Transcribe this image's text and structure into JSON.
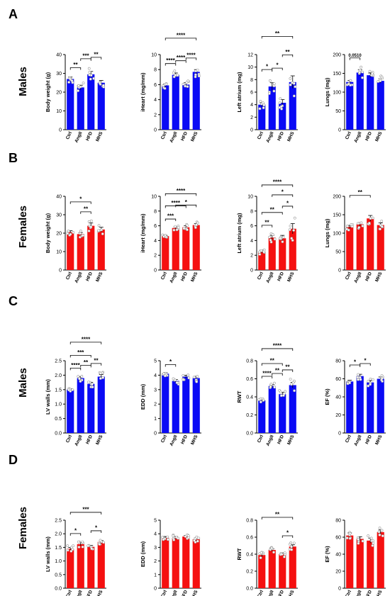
{
  "panels": [
    {
      "letter": "A",
      "row_label": "Males"
    },
    {
      "letter": "B",
      "row_label": "Females"
    },
    {
      "letter": "C",
      "row_label": "Males"
    },
    {
      "letter": "D",
      "row_label": "Females"
    }
  ],
  "colors": {
    "male": "#0a0af5",
    "female": "#f51010",
    "text": "#000000",
    "point_edge": "#9a9a9a"
  },
  "chart_data": [
    {
      "type": "bar",
      "panel": "A",
      "ylabel": "Body weight (g)",
      "categories": [
        "Ctrl",
        "AngII",
        "HFD",
        "MHS"
      ],
      "values": [
        27,
        22.5,
        29.5,
        25
      ],
      "errors": [
        1,
        1.2,
        1.5,
        1.2
      ],
      "ylim": [
        0,
        40
      ],
      "ticks": [
        0,
        10,
        20,
        30,
        40
      ],
      "tick_labels": [
        "0",
        "10",
        "20",
        "30",
        "40"
      ],
      "color": "male",
      "brackets": [
        {
          "from": 0,
          "to": 1,
          "label": "**"
        },
        {
          "from": 1,
          "to": 2,
          "label": "***"
        },
        {
          "from": 2,
          "to": 3,
          "label": "**"
        }
      ]
    },
    {
      "type": "bar",
      "panel": "A",
      "ylabel": "iHeart (mg/mm)",
      "categories": [
        "Ctrl",
        "AngII",
        "HFD",
        "MHS"
      ],
      "values": [
        5.9,
        7.3,
        6.0,
        7.7
      ],
      "errors": [
        0.2,
        0.25,
        0.25,
        0.3
      ],
      "ylim": [
        0,
        10
      ],
      "ticks": [
        0,
        2,
        4,
        6,
        8,
        10
      ],
      "tick_labels": [
        "0",
        "2",
        "4",
        "6",
        "8",
        "10"
      ],
      "color": "male",
      "brackets": [
        {
          "from": 0,
          "to": 1,
          "label": "****"
        },
        {
          "from": 2,
          "to": 3,
          "label": "****"
        },
        {
          "from": 1,
          "to": 2,
          "label": "****"
        },
        {
          "from": 0,
          "to": 3,
          "label": "****"
        }
      ]
    },
    {
      "type": "bar",
      "panel": "A",
      "ylabel": "Left atrium (mg)",
      "categories": [
        "Ctrl",
        "AngII",
        "HFD",
        "MHS"
      ],
      "values": [
        4.0,
        6.9,
        4.3,
        7.6
      ],
      "errors": [
        0.3,
        0.6,
        0.5,
        1.0
      ],
      "ylim": [
        0,
        12
      ],
      "ticks": [
        0,
        2,
        4,
        6,
        8,
        10,
        12
      ],
      "tick_labels": [
        "0",
        "2",
        "4",
        "6",
        "8",
        "10",
        "12"
      ],
      "color": "male",
      "brackets": [
        {
          "from": 0,
          "to": 1,
          "label": "*"
        },
        {
          "from": 1,
          "to": 2,
          "label": "*"
        },
        {
          "from": 2,
          "to": 3,
          "label": "**"
        },
        {
          "from": 0,
          "to": 3,
          "label": "**"
        }
      ]
    },
    {
      "type": "bar",
      "panel": "A",
      "ylabel": "Lungs (mg)",
      "categories": [
        "Ctrl",
        "AngII",
        "HFD",
        "MHS"
      ],
      "values": [
        127,
        152,
        145,
        130
      ],
      "errors": [
        4,
        8,
        6,
        6
      ],
      "ylim": [
        0,
        200
      ],
      "ticks": [
        0,
        50,
        100,
        150,
        200
      ],
      "tick_labels": [
        "0",
        "50",
        "100",
        "150",
        "200"
      ],
      "color": "male",
      "brackets": [
        {
          "from": 0,
          "to": 1,
          "label": "0.0510"
        }
      ]
    },
    {
      "type": "bar",
      "panel": "B",
      "ylabel": "Body weight (g)",
      "categories": [
        "Ctrl",
        "AngII",
        "HFD",
        "MHS"
      ],
      "values": [
        20.5,
        19.5,
        24,
        22
      ],
      "errors": [
        0.8,
        0.8,
        1.5,
        1.2
      ],
      "ylim": [
        0,
        40
      ],
      "ticks": [
        0,
        10,
        20,
        30,
        40
      ],
      "tick_labels": [
        "0",
        "10",
        "20",
        "30",
        "40"
      ],
      "color": "female",
      "brackets": [
        {
          "from": 1,
          "to": 2,
          "label": "**"
        },
        {
          "from": 0,
          "to": 2,
          "label": "*"
        }
      ]
    },
    {
      "type": "bar",
      "panel": "B",
      "ylabel": "iHeart (mg/mm)",
      "categories": [
        "Ctrl",
        "AngII",
        "HFD",
        "MHS"
      ],
      "values": [
        4.6,
        5.7,
        5.8,
        6.1
      ],
      "errors": [
        0.1,
        0.15,
        0.2,
        0.2
      ],
      "ylim": [
        0,
        10
      ],
      "ticks": [
        0,
        2,
        4,
        6,
        8,
        10
      ],
      "tick_labels": [
        "0",
        "2",
        "4",
        "6",
        "8",
        "10"
      ],
      "color": "female",
      "brackets": [
        {
          "from": 0,
          "to": 1,
          "label": "***"
        },
        {
          "from": 1,
          "to": 3,
          "label": "*"
        },
        {
          "from": 0,
          "to": 2,
          "label": "****"
        },
        {
          "from": 0,
          "to": 3,
          "label": "****"
        }
      ]
    },
    {
      "type": "bar",
      "panel": "B",
      "ylabel": "Left atrium (mg)",
      "categories": [
        "Ctrl",
        "AngII",
        "HFD",
        "MHS"
      ],
      "values": [
        2.5,
        4.4,
        4.3,
        5.6
      ],
      "errors": [
        0.2,
        0.3,
        0.4,
        0.7
      ],
      "ylim": [
        0,
        10
      ],
      "ticks": [
        0,
        2,
        4,
        6,
        8,
        10
      ],
      "tick_labels": [
        "0",
        "2",
        "4",
        "6",
        "8",
        "10"
      ],
      "color": "female",
      "brackets": [
        {
          "from": 0,
          "to": 1,
          "label": "**"
        },
        {
          "from": 2,
          "to": 3,
          "label": "*"
        },
        {
          "from": 0,
          "to": 2,
          "label": "**"
        },
        {
          "from": 1,
          "to": 3,
          "label": "*"
        },
        {
          "from": 0,
          "to": 3,
          "label": "****"
        }
      ]
    },
    {
      "type": "bar",
      "panel": "B",
      "ylabel": "Lungs (mg)",
      "categories": [
        "Ctrl",
        "AngII",
        "HFD",
        "MHS"
      ],
      "values": [
        117,
        124,
        140,
        122
      ],
      "errors": [
        4,
        5,
        8,
        6
      ],
      "ylim": [
        0,
        200
      ],
      "ticks": [
        0,
        50,
        100,
        150,
        200
      ],
      "tick_labels": [
        "0",
        "50",
        "100",
        "150",
        "200"
      ],
      "color": "female",
      "brackets": [
        {
          "from": 0,
          "to": 2,
          "label": "**"
        }
      ]
    },
    {
      "type": "bar",
      "panel": "C",
      "ylabel": "LV walls (mm)",
      "categories": [
        "Ctrl",
        "AngII",
        "HFD",
        "MHS"
      ],
      "values": [
        1.5,
        1.9,
        1.7,
        1.95
      ],
      "errors": [
        0.03,
        0.05,
        0.05,
        0.07
      ],
      "ylim": [
        0,
        2.5
      ],
      "ticks": [
        0,
        0.5,
        1,
        1.5,
        2,
        2.5
      ],
      "tick_labels": [
        "0.0",
        "0.5",
        "1.0",
        "1.5",
        "2.0",
        "2.5"
      ],
      "color": "male",
      "brackets": [
        {
          "from": 0,
          "to": 1,
          "label": "****"
        },
        {
          "from": 2,
          "to": 3,
          "label": "**"
        },
        {
          "from": 1,
          "to": 2,
          "label": "**"
        },
        {
          "from": 0,
          "to": 2,
          "label": "***"
        },
        {
          "from": 0,
          "to": 3,
          "label": "****"
        }
      ]
    },
    {
      "type": "bar",
      "panel": "C",
      "ylabel": "EDD (mm)",
      "categories": [
        "Ctrl",
        "AngII",
        "HFD",
        "MHS"
      ],
      "values": [
        4.1,
        3.6,
        3.9,
        3.8
      ],
      "errors": [
        0.08,
        0.1,
        0.1,
        0.12
      ],
      "ylim": [
        0,
        5
      ],
      "ticks": [
        0,
        1,
        2,
        3,
        4,
        5
      ],
      "tick_labels": [
        "0",
        "1",
        "2",
        "3",
        "4",
        "5"
      ],
      "color": "male",
      "brackets": [
        {
          "from": 0,
          "to": 1,
          "label": "*"
        }
      ]
    },
    {
      "type": "bar",
      "panel": "C",
      "ylabel": "RWT",
      "categories": [
        "Ctrl",
        "AngII",
        "HFD",
        "MHS"
      ],
      "values": [
        0.36,
        0.52,
        0.43,
        0.53
      ],
      "errors": [
        0.01,
        0.015,
        0.02,
        0.03
      ],
      "ylim": [
        0,
        0.8
      ],
      "ticks": [
        0,
        0.2,
        0.4,
        0.6,
        0.8
      ],
      "tick_labels": [
        "0.0",
        "0.2",
        "0.4",
        "0.6",
        "0.8"
      ],
      "color": "male",
      "brackets": [
        {
          "from": 0,
          "to": 1,
          "label": "****"
        },
        {
          "from": 2,
          "to": 3,
          "label": "**"
        },
        {
          "from": 1,
          "to": 2,
          "label": "**"
        },
        {
          "from": 0,
          "to": 2,
          "label": "**"
        },
        {
          "from": 0,
          "to": 3,
          "label": "****"
        }
      ]
    },
    {
      "type": "bar",
      "panel": "C",
      "ylabel": "EF (%)",
      "categories": [
        "Ctrl",
        "AngII",
        "HFD",
        "MHS"
      ],
      "values": [
        57,
        63,
        56,
        60
      ],
      "errors": [
        1.5,
        2,
        2,
        2
      ],
      "ylim": [
        0,
        80
      ],
      "ticks": [
        0,
        20,
        40,
        60,
        80
      ],
      "tick_labels": [
        "0",
        "20",
        "40",
        "60",
        "80"
      ],
      "color": "male",
      "brackets": [
        {
          "from": 0,
          "to": 1,
          "label": "*"
        },
        {
          "from": 1,
          "to": 2,
          "label": "*"
        }
      ]
    },
    {
      "type": "bar",
      "panel": "D",
      "ylabel": "LV walls (mm)",
      "categories": [
        "Ctrl",
        "AngII",
        "HFD",
        "MHS"
      ],
      "values": [
        1.45,
        1.62,
        1.52,
        1.7
      ],
      "errors": [
        0.05,
        0.06,
        0.05,
        0.05
      ],
      "ylim": [
        0,
        2.5
      ],
      "ticks": [
        0,
        0.5,
        1,
        1.5,
        2,
        2.5
      ],
      "tick_labels": [
        "0.0",
        "0.5",
        "1.0",
        "1.5",
        "2.0",
        "2.5"
      ],
      "color": "female",
      "brackets": [
        {
          "from": 0,
          "to": 1,
          "label": "*"
        },
        {
          "from": 2,
          "to": 3,
          "label": "*"
        },
        {
          "from": 0,
          "to": 3,
          "label": "***"
        }
      ]
    },
    {
      "type": "bar",
      "panel": "D",
      "ylabel": "EDD (mm)",
      "categories": [
        "Ctrl",
        "AngII",
        "HFD",
        "MHS"
      ],
      "values": [
        3.7,
        3.7,
        3.8,
        3.6
      ],
      "errors": [
        0.1,
        0.1,
        0.08,
        0.1
      ],
      "ylim": [
        0,
        5
      ],
      "ticks": [
        0,
        1,
        2,
        3,
        4,
        5
      ],
      "tick_labels": [
        "0",
        "1",
        "2",
        "3",
        "4",
        "5"
      ],
      "color": "female",
      "brackets": []
    },
    {
      "type": "bar",
      "panel": "D",
      "ylabel": "RWT",
      "categories": [
        "Ctrl",
        "AngII",
        "HFD",
        "MHS"
      ],
      "values": [
        0.39,
        0.45,
        0.4,
        0.49
      ],
      "errors": [
        0.02,
        0.015,
        0.015,
        0.02
      ],
      "ylim": [
        0,
        0.8
      ],
      "ticks": [
        0,
        0.2,
        0.4,
        0.6,
        0.8
      ],
      "tick_labels": [
        "0.0",
        "0.2",
        "0.4",
        "0.6",
        "0.8"
      ],
      "color": "female",
      "brackets": [
        {
          "from": 2,
          "to": 3,
          "label": "*"
        },
        {
          "from": 0,
          "to": 3,
          "label": "**"
        }
      ]
    },
    {
      "type": "bar",
      "panel": "D",
      "ylabel": "EF (%)",
      "categories": [
        "Ctrl",
        "AngII",
        "HFD",
        "MHS"
      ],
      "values": [
        62,
        58,
        56,
        66
      ],
      "errors": [
        3,
        2.5,
        3,
        2.5
      ],
      "ylim": [
        0,
        80
      ],
      "ticks": [
        0,
        20,
        40,
        60,
        80
      ],
      "tick_labels": [
        "0",
        "20",
        "40",
        "60",
        "80"
      ],
      "color": "female",
      "brackets": []
    }
  ]
}
